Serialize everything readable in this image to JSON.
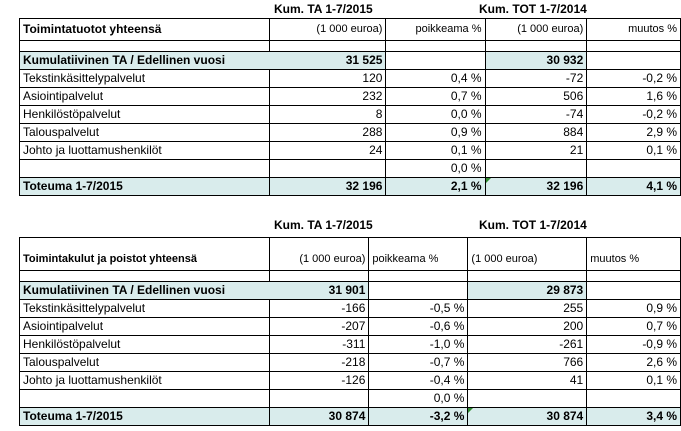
{
  "table1": {
    "header_ta": "Kum. TA 1-7/2015",
    "header_tot": "Kum. TOT 1-7/2014",
    "title": "Toimintatuotot yhteensä",
    "col_unit1": "(1 000 euroa)",
    "col_dev": "poikkeama %",
    "col_unit2": "(1 000 euroa)",
    "col_change": "muutos %",
    "cum_label": "Kumulatiivinen TA / Edellinen vuosi",
    "cum_ta": "31 525",
    "cum_tot": "30 932",
    "rows": [
      {
        "label": "Tekstinkäsittelypalvelut",
        "ta": "120",
        "dev": "0,4 %",
        "tot": "-72",
        "change": "-0,2 %"
      },
      {
        "label": "Asiointipalvelut",
        "ta": "232",
        "dev": "0,7 %",
        "tot": "506",
        "change": "1,6 %"
      },
      {
        "label": "Henkilöstöpalvelut",
        "ta": "8",
        "dev": "0,0 %",
        "tot": "-74",
        "change": "-0,2 %"
      },
      {
        "label": "Talouspalvelut",
        "ta": "288",
        "dev": "0,9 %",
        "tot": "884",
        "change": "2,9 %"
      },
      {
        "label": "Johto ja luottamushenkilöt",
        "ta": "24",
        "dev": "0,1 %",
        "tot": "21",
        "change": "0,1 %"
      }
    ],
    "extra_dev": "0,0 %",
    "total_label": "Toteuma 1-7/2015",
    "total_ta": "32 196",
    "total_dev": "2,1 %",
    "total_tot": "32 196",
    "total_change": "4,1 %"
  },
  "table2": {
    "header_ta": "Kum.  TA 1-7/2015",
    "header_tot": "Kum. TOT 1-7/2014",
    "title": "Toimintakulut ja poistot yhteensä",
    "col_unit1": "(1 000 euroa)",
    "col_dev": "poikkeama %",
    "col_unit2": "(1 000 euroa)",
    "col_change": "muutos %",
    "cum_label": "Kumulatiivinen TA / Edellinen vuosi",
    "cum_ta": "31 901",
    "cum_tot": "29 873",
    "rows": [
      {
        "label": "Tekstinkäsittelypalvelut",
        "ta": "-166",
        "dev": "-0,5 %",
        "tot": "255",
        "change": "0,9 %"
      },
      {
        "label": "Asiointipalvelut",
        "ta": "-207",
        "dev": "-0,6 %",
        "tot": "200",
        "change": "0,7 %"
      },
      {
        "label": "Henkilöstöpalvelut",
        "ta": "-311",
        "dev": "-1,0 %",
        "tot": "-261",
        "change": "-0,9 %"
      },
      {
        "label": "Talouspalvelut",
        "ta": "-218",
        "dev": "-0,7 %",
        "tot": "766",
        "change": "2,6 %"
      },
      {
        "label": "Johto ja luottamushenkilöt",
        "ta": "-126",
        "dev": "-0,4 %",
        "tot": "41",
        "change": "0,1 %"
      }
    ],
    "extra_dev": "0,0 %",
    "total_label": "Toteuma 1-7/2015",
    "total_ta": "30 874",
    "total_dev": "-3,2 %",
    "total_tot": "30 874",
    "total_change": "3,4 %"
  },
  "colors": {
    "highlight": "#d9ecec",
    "marker": "#2f8b2f"
  }
}
